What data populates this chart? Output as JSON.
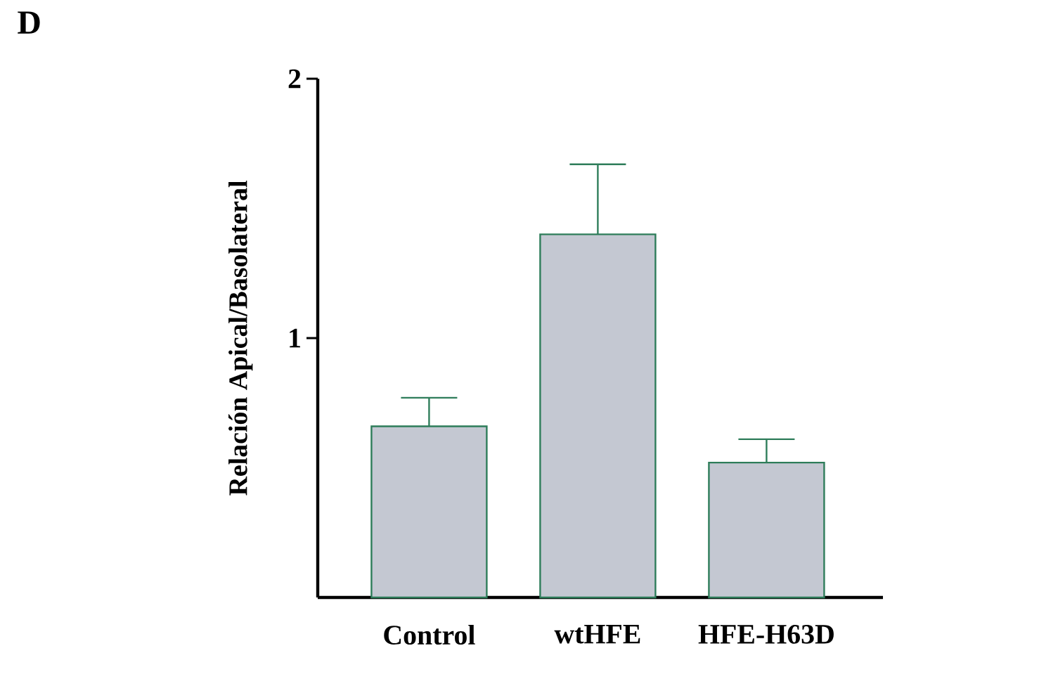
{
  "chart_data": {
    "type": "bar",
    "ylabel": "Relación Apical/Basolateral",
    "categories": [
      "Control",
      "wtHFE",
      "HFE-H63D"
    ],
    "values": [
      0.66,
      1.4,
      0.52
    ],
    "errors": [
      [
        0.66,
        0.77
      ],
      [
        1.4,
        1.67
      ],
      [
        0.52,
        0.61
      ]
    ],
    "color": "#c4c8d2",
    "ylim": [
      0,
      2
    ],
    "yticks": [
      1,
      2
    ],
    "grid": false,
    "annotations": [
      "D"
    ]
  }
}
